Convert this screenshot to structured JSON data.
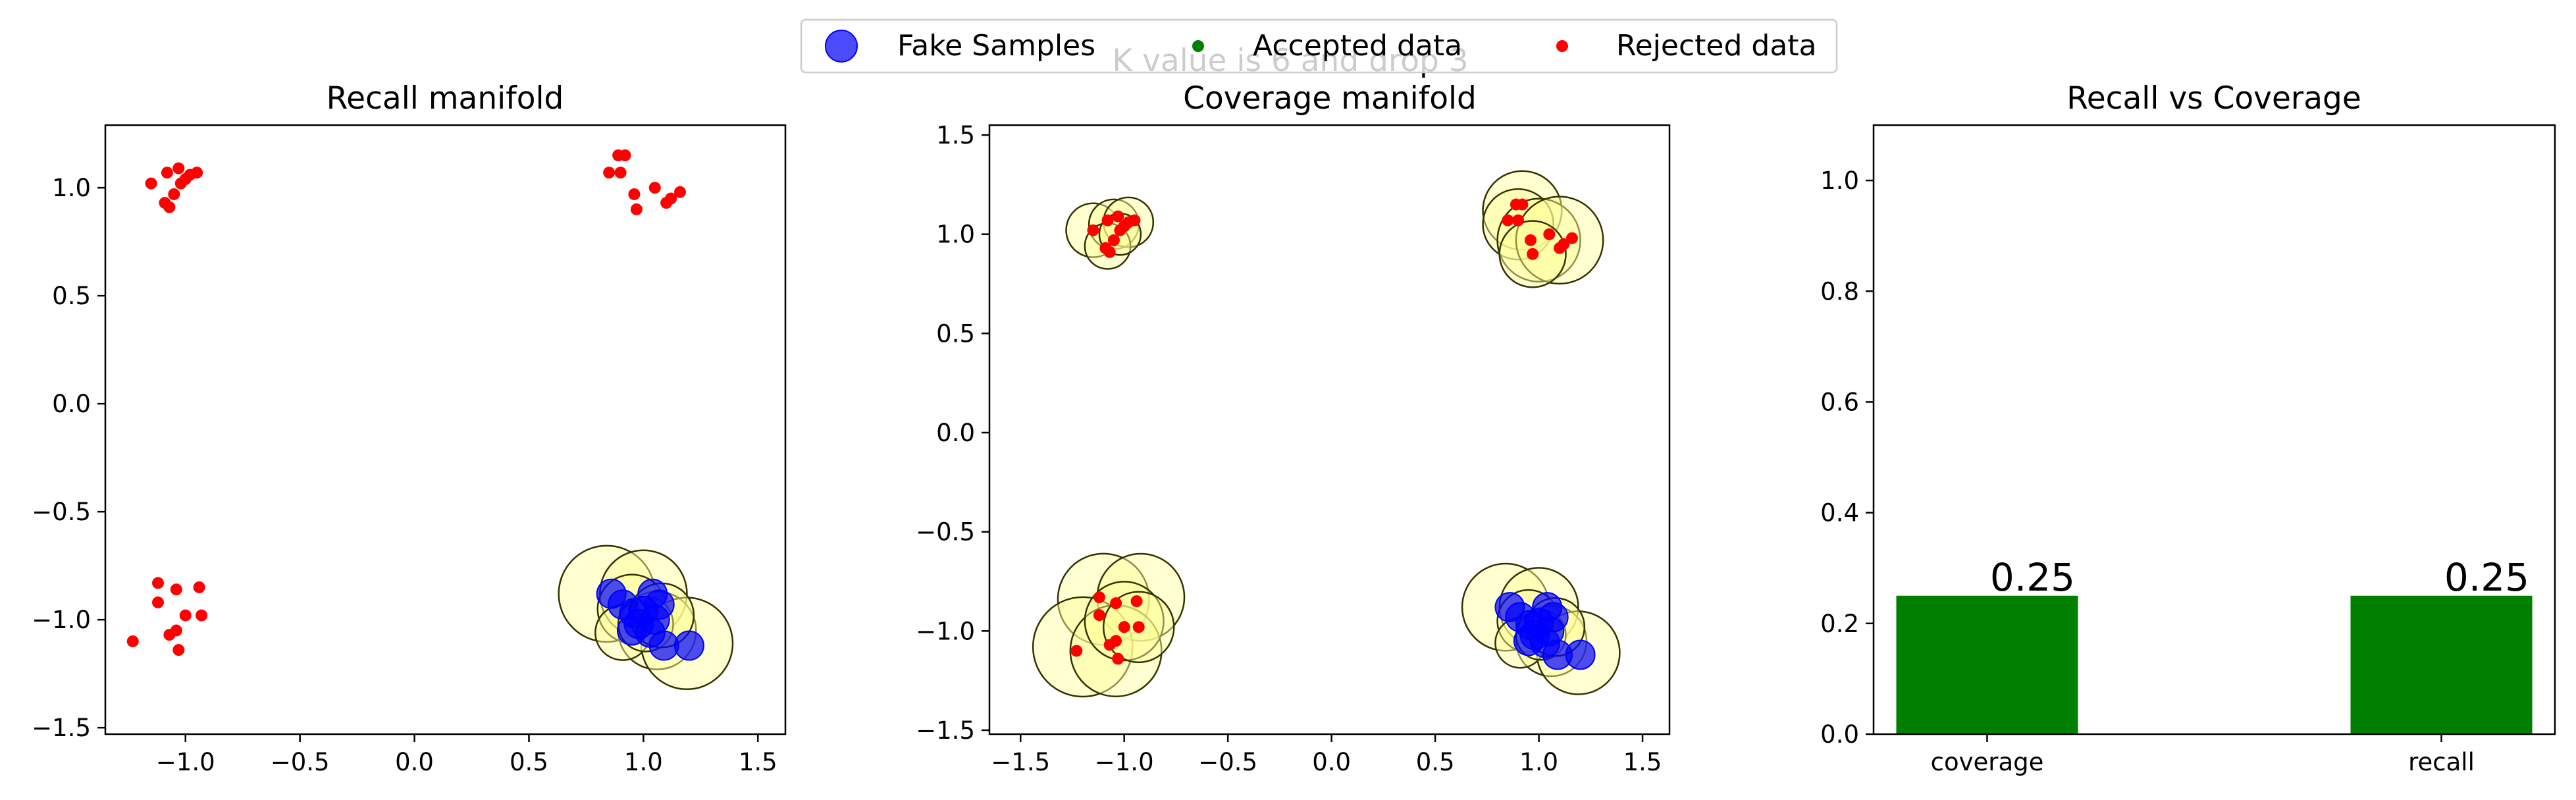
{
  "suptitle": "K value is 6 and drop 3",
  "legend": [
    {
      "label": "Fake Samples",
      "marker": "circle-large",
      "color": "#0000ff"
    },
    {
      "label": "Accepted data",
      "marker": "dot",
      "color": "#008000"
    },
    {
      "label": "Rejected data",
      "marker": "dot",
      "color": "#ff0000"
    }
  ],
  "colors": {
    "fake": "#0000ff",
    "accepted": "#008000",
    "rejected": "#ff0000",
    "manifold_fill": "#ffff99",
    "manifold_edge": "#333300",
    "bar": "#008000"
  },
  "chart_data": [
    {
      "type": "scatter",
      "title": "Recall manifold",
      "xlim": [
        -1.35,
        1.62
      ],
      "ylim": [
        -1.53,
        1.29
      ],
      "xticks": [
        -1.0,
        -0.5,
        0.0,
        0.5,
        1.0,
        1.5
      ],
      "xtick_labels": [
        "−1.0",
        "−0.5",
        "0.0",
        "0.5",
        "1.0",
        "1.5"
      ],
      "yticks": [
        -1.5,
        -1.0,
        -0.5,
        0.0,
        0.5,
        1.0
      ],
      "ytick_labels": [
        "−1.5",
        "−1.0",
        "−0.5",
        "0.0",
        "0.5",
        "1.0"
      ],
      "manifold": [
        {
          "x": 0.84,
          "y": -0.88,
          "r": 0.21
        },
        {
          "x": 1.0,
          "y": -0.88,
          "r": 0.19
        },
        {
          "x": 0.95,
          "y": -0.95,
          "r": 0.15
        },
        {
          "x": 1.06,
          "y": -1.05,
          "r": 0.17
        },
        {
          "x": 1.19,
          "y": -1.11,
          "r": 0.2
        },
        {
          "x": 0.91,
          "y": -1.06,
          "r": 0.12
        },
        {
          "x": 1.01,
          "y": -1.02,
          "r": 0.12
        },
        {
          "x": 1.08,
          "y": -0.98,
          "r": 0.14
        }
      ],
      "fake": [
        {
          "x": 0.86,
          "y": -0.88
        },
        {
          "x": 0.91,
          "y": -0.93
        },
        {
          "x": 0.96,
          "y": -0.97
        },
        {
          "x": 1.04,
          "y": -0.88
        },
        {
          "x": 1.07,
          "y": -0.93
        },
        {
          "x": 1.0,
          "y": -0.96
        },
        {
          "x": 1.05,
          "y": -1.0
        },
        {
          "x": 0.95,
          "y": -1.05
        },
        {
          "x": 1.03,
          "y": -1.06
        },
        {
          "x": 1.09,
          "y": -1.12
        },
        {
          "x": 1.2,
          "y": -1.12
        },
        {
          "x": 0.98,
          "y": -1.02
        }
      ],
      "accepted": [],
      "rejected": [
        {
          "x": -1.15,
          "y": 1.02
        },
        {
          "x": -1.08,
          "y": 1.07
        },
        {
          "x": -1.03,
          "y": 1.09
        },
        {
          "x": -1.0,
          "y": 1.04
        },
        {
          "x": -0.98,
          "y": 1.06
        },
        {
          "x": -0.95,
          "y": 1.07
        },
        {
          "x": -1.05,
          "y": 0.97
        },
        {
          "x": -1.09,
          "y": 0.93
        },
        {
          "x": -1.07,
          "y": 0.91
        },
        {
          "x": -1.02,
          "y": 1.02
        },
        {
          "x": 0.85,
          "y": 1.07
        },
        {
          "x": 0.89,
          "y": 1.15
        },
        {
          "x": 0.92,
          "y": 1.15
        },
        {
          "x": 0.9,
          "y": 1.07
        },
        {
          "x": 0.96,
          "y": 0.97
        },
        {
          "x": 0.97,
          "y": 0.9
        },
        {
          "x": 1.05,
          "y": 1.0
        },
        {
          "x": 1.1,
          "y": 0.93
        },
        {
          "x": 1.12,
          "y": 0.95
        },
        {
          "x": 1.16,
          "y": 0.98
        },
        {
          "x": -1.12,
          "y": -0.83
        },
        {
          "x": -1.12,
          "y": -0.92
        },
        {
          "x": -1.04,
          "y": -0.86
        },
        {
          "x": -0.94,
          "y": -0.85
        },
        {
          "x": -1.0,
          "y": -0.98
        },
        {
          "x": -0.93,
          "y": -0.98
        },
        {
          "x": -1.04,
          "y": -1.05
        },
        {
          "x": -1.07,
          "y": -1.07
        },
        {
          "x": -1.03,
          "y": -1.14
        },
        {
          "x": -1.23,
          "y": -1.1
        }
      ]
    },
    {
      "type": "scatter",
      "title": "Coverage manifold",
      "xlim": [
        -1.65,
        1.63
      ],
      "ylim": [
        -1.52,
        1.55
      ],
      "xticks": [
        -1.5,
        -1.0,
        -0.5,
        0.0,
        0.5,
        1.0,
        1.5
      ],
      "xtick_labels": [
        "−1.5",
        "−1.0",
        "−0.5",
        "0.0",
        "0.5",
        "1.0",
        "1.5"
      ],
      "yticks": [
        -1.5,
        -1.0,
        -0.5,
        0.0,
        0.5,
        1.0,
        1.5
      ],
      "ytick_labels": [
        "−1.5",
        "−1.0",
        "−0.5",
        "0.0",
        "0.5",
        "1.0",
        "1.5"
      ],
      "manifold": [
        {
          "x": -1.15,
          "y": 1.02,
          "r": 0.13
        },
        {
          "x": -1.05,
          "y": 1.05,
          "r": 0.12
        },
        {
          "x": -0.98,
          "y": 1.06,
          "r": 0.12
        },
        {
          "x": -1.08,
          "y": 0.94,
          "r": 0.11
        },
        {
          "x": -1.02,
          "y": 1.0,
          "r": 0.1
        },
        {
          "x": 0.92,
          "y": 1.12,
          "r": 0.19
        },
        {
          "x": 0.9,
          "y": 1.05,
          "r": 0.17
        },
        {
          "x": 1.0,
          "y": 0.97,
          "r": 0.2
        },
        {
          "x": 1.1,
          "y": 0.97,
          "r": 0.21
        },
        {
          "x": 0.97,
          "y": 0.9,
          "r": 0.16
        },
        {
          "x": -1.1,
          "y": -0.84,
          "r": 0.22
        },
        {
          "x": -0.92,
          "y": -0.83,
          "r": 0.21
        },
        {
          "x": -1.2,
          "y": -1.08,
          "r": 0.24
        },
        {
          "x": -1.04,
          "y": -1.1,
          "r": 0.22
        },
        {
          "x": -1.0,
          "y": -0.95,
          "r": 0.19
        },
        {
          "x": -0.93,
          "y": -0.98,
          "r": 0.17
        },
        {
          "x": 0.84,
          "y": -0.88,
          "r": 0.21
        },
        {
          "x": 1.0,
          "y": -0.88,
          "r": 0.19
        },
        {
          "x": 0.95,
          "y": -0.95,
          "r": 0.15
        },
        {
          "x": 1.06,
          "y": -1.05,
          "r": 0.17
        },
        {
          "x": 1.19,
          "y": -1.11,
          "r": 0.2
        },
        {
          "x": 0.91,
          "y": -1.06,
          "r": 0.12
        },
        {
          "x": 1.01,
          "y": -1.02,
          "r": 0.12
        },
        {
          "x": 1.08,
          "y": -0.98,
          "r": 0.14
        }
      ],
      "fake": [
        {
          "x": 0.86,
          "y": -0.88
        },
        {
          "x": 0.91,
          "y": -0.93
        },
        {
          "x": 0.96,
          "y": -0.97
        },
        {
          "x": 1.04,
          "y": -0.88
        },
        {
          "x": 1.07,
          "y": -0.93
        },
        {
          "x": 1.0,
          "y": -0.96
        },
        {
          "x": 1.05,
          "y": -1.0
        },
        {
          "x": 0.95,
          "y": -1.05
        },
        {
          "x": 1.03,
          "y": -1.06
        },
        {
          "x": 1.09,
          "y": -1.12
        },
        {
          "x": 1.2,
          "y": -1.12
        },
        {
          "x": 0.98,
          "y": -1.02
        }
      ],
      "accepted": [],
      "rejected": [
        {
          "x": -1.15,
          "y": 1.02
        },
        {
          "x": -1.08,
          "y": 1.07
        },
        {
          "x": -1.03,
          "y": 1.09
        },
        {
          "x": -1.0,
          "y": 1.04
        },
        {
          "x": -0.98,
          "y": 1.06
        },
        {
          "x": -0.95,
          "y": 1.07
        },
        {
          "x": -1.05,
          "y": 0.97
        },
        {
          "x": -1.09,
          "y": 0.93
        },
        {
          "x": -1.07,
          "y": 0.91
        },
        {
          "x": -1.02,
          "y": 1.02
        },
        {
          "x": 0.85,
          "y": 1.07
        },
        {
          "x": 0.89,
          "y": 1.15
        },
        {
          "x": 0.92,
          "y": 1.15
        },
        {
          "x": 0.9,
          "y": 1.07
        },
        {
          "x": 0.96,
          "y": 0.97
        },
        {
          "x": 0.97,
          "y": 0.9
        },
        {
          "x": 1.05,
          "y": 1.0
        },
        {
          "x": 1.1,
          "y": 0.93
        },
        {
          "x": 1.12,
          "y": 0.95
        },
        {
          "x": 1.16,
          "y": 0.98
        },
        {
          "x": -1.12,
          "y": -0.83
        },
        {
          "x": -1.12,
          "y": -0.92
        },
        {
          "x": -1.04,
          "y": -0.86
        },
        {
          "x": -0.94,
          "y": -0.85
        },
        {
          "x": -1.0,
          "y": -0.98
        },
        {
          "x": -0.93,
          "y": -0.98
        },
        {
          "x": -1.04,
          "y": -1.05
        },
        {
          "x": -1.07,
          "y": -1.07
        },
        {
          "x": -1.03,
          "y": -1.14
        },
        {
          "x": -1.23,
          "y": -1.1
        }
      ]
    },
    {
      "type": "bar",
      "title": "Recall vs Coverage",
      "categories": [
        "coverage",
        "recall"
      ],
      "values": [
        0.25,
        0.25
      ],
      "value_labels": [
        "0.25",
        "0.25"
      ],
      "ylim": [
        0.0,
        1.1
      ],
      "yticks": [
        0.0,
        0.2,
        0.4,
        0.6,
        0.8,
        1.0
      ],
      "ytick_labels": [
        "0.0",
        "0.2",
        "0.4",
        "0.6",
        "0.8",
        "1.0"
      ]
    }
  ]
}
